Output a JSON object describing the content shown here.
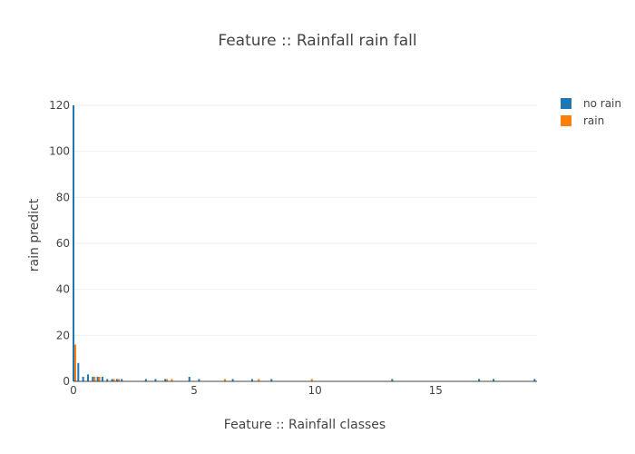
{
  "chart_data": {
    "type": "bar",
    "title": "Feature :: Rainfall rain fall",
    "xlabel": "Feature :: Rainfall classes",
    "ylabel": "rain predict",
    "xlim": [
      0,
      19.2
    ],
    "ylim": [
      0,
      120
    ],
    "xticks": [
      0,
      5,
      10,
      15
    ],
    "yticks": [
      0,
      20,
      40,
      60,
      80,
      100,
      120
    ],
    "grid": true,
    "legend_position": "top-right",
    "series": [
      {
        "name": "no rain",
        "color": "#1f77b4",
        "points": [
          [
            0.0,
            120
          ],
          [
            0.2,
            8
          ],
          [
            0.4,
            2
          ],
          [
            0.6,
            3
          ],
          [
            0.8,
            2
          ],
          [
            1.0,
            2
          ],
          [
            1.2,
            2
          ],
          [
            1.4,
            1
          ],
          [
            1.6,
            1
          ],
          [
            1.8,
            1
          ],
          [
            2.0,
            1
          ],
          [
            3.0,
            1
          ],
          [
            3.4,
            1
          ],
          [
            3.8,
            1
          ],
          [
            4.8,
            2
          ],
          [
            5.2,
            1
          ],
          [
            6.6,
            1
          ],
          [
            7.4,
            1
          ],
          [
            8.2,
            1
          ],
          [
            13.2,
            1
          ],
          [
            16.8,
            1
          ],
          [
            17.4,
            1
          ],
          [
            19.1,
            1
          ]
        ]
      },
      {
        "name": "rain",
        "color": "#ff7f0e",
        "points": [
          [
            0.0,
            16
          ],
          [
            0.8,
            2
          ],
          [
            1.0,
            2
          ],
          [
            1.6,
            1
          ],
          [
            1.8,
            1
          ],
          [
            3.8,
            1
          ],
          [
            4.0,
            1
          ],
          [
            6.2,
            1
          ],
          [
            7.6,
            1
          ],
          [
            9.8,
            1
          ]
        ]
      }
    ]
  }
}
